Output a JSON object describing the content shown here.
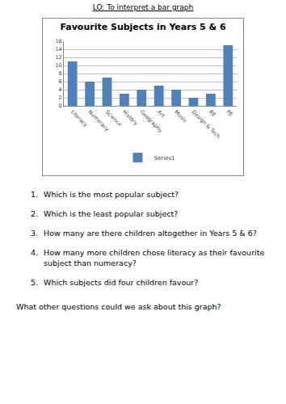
{
  "heading": "LO: To interpret a bar graph",
  "chart_data": {
    "type": "bar",
    "title": "Favourite Subjects in Years 5 & 6",
    "categories": [
      "Literacy",
      "Numeracy",
      "Science",
      "History",
      "Geography",
      "Art",
      "Music",
      "Design & Tech.",
      "RE",
      "PE"
    ],
    "series": [
      {
        "name": "Series1",
        "color": "#4f81bd",
        "values": [
          11,
          6,
          7,
          3,
          4,
          5,
          4,
          2,
          3,
          15
        ]
      }
    ],
    "ylim": [
      0,
      16
    ],
    "yticks": [
      0,
      2,
      4,
      6,
      8,
      10,
      12,
      14,
      16
    ],
    "grid": true,
    "legend": "bottom"
  },
  "questions": [
    {
      "label": "1.",
      "text": "Which is the most popular subject?"
    },
    {
      "label": "2.",
      "text": "Which is the least popular subject?"
    },
    {
      "label": "3.",
      "text": "How many are there children altogether in Years 5 & 6?"
    },
    {
      "label": "4.",
      "text": "How many more children chose literacy as their favourite subject than numeracy?"
    },
    {
      "label": "5.",
      "text": "Which subjects did four children favour?"
    }
  ],
  "closing": "What other questions could we ask about this graph?"
}
